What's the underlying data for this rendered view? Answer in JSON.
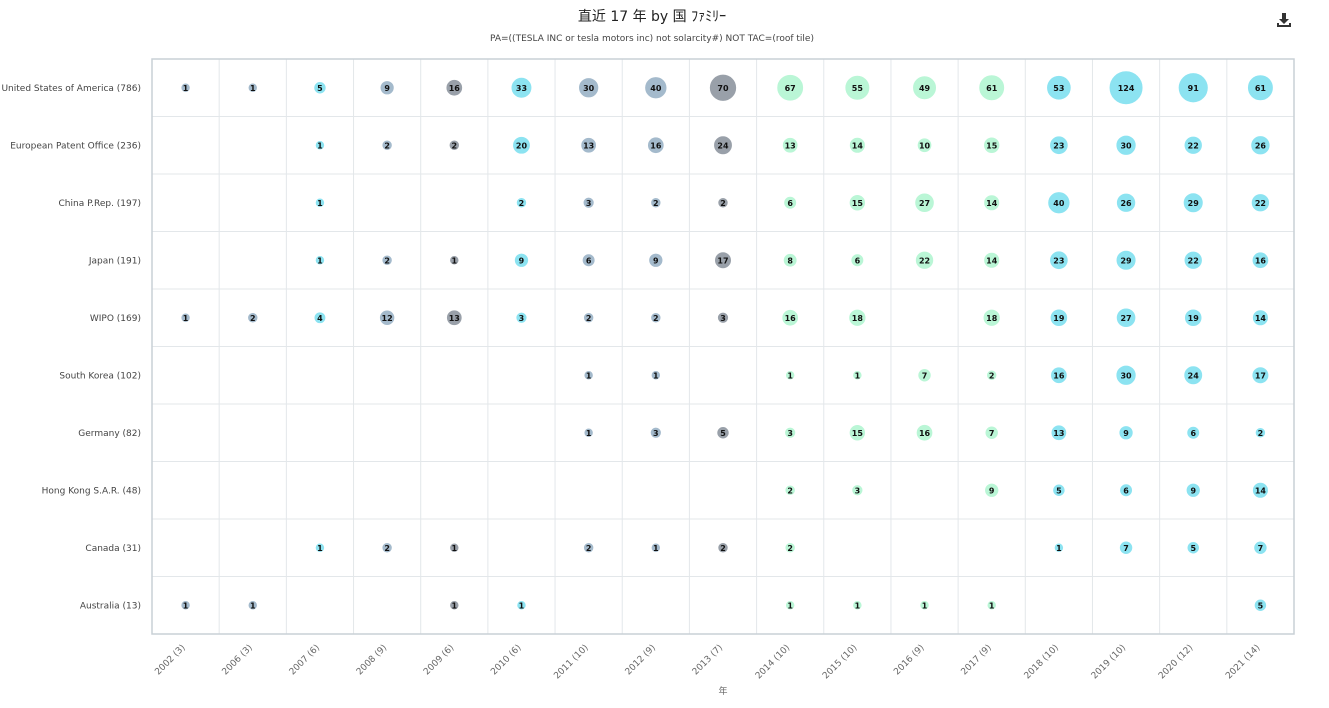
{
  "chart_data": {
    "type": "bubble-matrix",
    "title": "直近 17 年 by 国 ﾌｧﾐﾘｰ",
    "subtitle": "PA=((TESLA INC or tesla motors inc) not solarcity#) NOT TAC=(roof tile)",
    "xlabel": "年",
    "download_icon": "download-icon",
    "columns": [
      "2002 (3)",
      "2006 (3)",
      "2007 (6)",
      "2008 (9)",
      "2009 (6)",
      "2010 (6)",
      "2011 (10)",
      "2012 (9)",
      "2013 (7)",
      "2014 (10)",
      "2015 (10)",
      "2016 (9)",
      "2017 (9)",
      "2018 (10)",
      "2019 (10)",
      "2020 (12)",
      "2021 (14)"
    ],
    "column_colors": [
      "#9ab3c6",
      "#9ab3c6",
      "#7fe0f0",
      "#9ab3c6",
      "#8e96a0",
      "#7fe0f0",
      "#9ab3c6",
      "#9ab3c6",
      "#8e96a0",
      "#b2f5d2",
      "#b2f5d2",
      "#b2f5d2",
      "#b2f5d2",
      "#7fe0f0",
      "#7fe0f0",
      "#7fe0f0",
      "#7fe0f0"
    ],
    "rows": [
      {
        "label": "United States of America (786)",
        "values": [
          1,
          1,
          5,
          9,
          16,
          33,
          30,
          40,
          70,
          67,
          55,
          49,
          61,
          53,
          124,
          91,
          61
        ]
      },
      {
        "label": "European Patent Office (236)",
        "values": [
          null,
          null,
          1,
          2,
          2,
          20,
          13,
          16,
          24,
          13,
          14,
          10,
          15,
          23,
          30,
          22,
          26
        ]
      },
      {
        "label": "China P.Rep. (197)",
        "values": [
          null,
          null,
          1,
          null,
          null,
          2,
          3,
          2,
          2,
          6,
          15,
          27,
          14,
          40,
          26,
          29,
          22
        ]
      },
      {
        "label": "Japan (191)",
        "values": [
          null,
          null,
          1,
          2,
          1,
          9,
          6,
          9,
          17,
          8,
          6,
          22,
          14,
          23,
          29,
          22,
          16
        ]
      },
      {
        "label": "WIPO (169)",
        "values": [
          1,
          2,
          4,
          12,
          13,
          3,
          2,
          2,
          3,
          16,
          18,
          null,
          18,
          19,
          27,
          19,
          14
        ]
      },
      {
        "label": "South Korea (102)",
        "values": [
          null,
          null,
          null,
          null,
          null,
          null,
          1,
          1,
          null,
          1,
          1,
          7,
          2,
          16,
          30,
          24,
          17
        ]
      },
      {
        "label": "Germany (82)",
        "values": [
          null,
          null,
          null,
          null,
          null,
          null,
          1,
          3,
          5,
          3,
          15,
          16,
          7,
          13,
          9,
          6,
          2
        ]
      },
      {
        "label": "Hong Kong S.A.R. (48)",
        "values": [
          null,
          null,
          null,
          null,
          null,
          null,
          null,
          null,
          null,
          2,
          3,
          null,
          9,
          5,
          6,
          9,
          14
        ]
      },
      {
        "label": "Canada (31)",
        "values": [
          null,
          null,
          1,
          2,
          1,
          null,
          2,
          1,
          2,
          2,
          null,
          null,
          null,
          1,
          7,
          5,
          7
        ]
      },
      {
        "label": "Australia (13)",
        "values": [
          1,
          1,
          null,
          null,
          1,
          1,
          null,
          null,
          null,
          1,
          1,
          1,
          1,
          null,
          null,
          null,
          5
        ]
      }
    ]
  }
}
